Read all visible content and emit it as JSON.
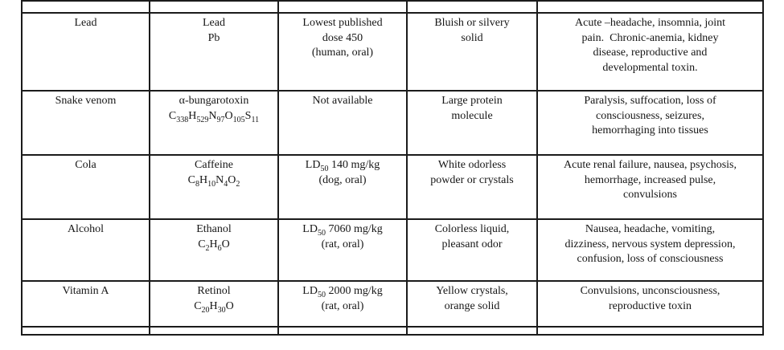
{
  "table": {
    "border_color": "#1b1b1b",
    "text_color": "#161616",
    "rows": [
      {
        "substance": [
          "Lead"
        ],
        "chemical": [
          "Lead",
          "Pb"
        ],
        "toxicity": [
          "Lowest published",
          "dose 450",
          "(human, oral)"
        ],
        "appearance": [
          "Bluish or silvery",
          "solid"
        ],
        "effects": [
          "Acute –headache, insomnia, joint",
          "pain.  Chronic-anemia, kidney",
          "disease, reproductive and",
          "developmental toxin."
        ]
      },
      {
        "substance": [
          "Snake venom"
        ],
        "chemical": [
          "α-bungarotoxin",
          "C_{338}H_{529}N_{97}O_{105}S_{11}"
        ],
        "toxicity": [
          "Not available"
        ],
        "appearance": [
          "Large protein",
          "molecule"
        ],
        "effects": [
          "Paralysis, suffocation, loss of",
          "consciousness, seizures,",
          "hemorrhaging into tissues"
        ]
      },
      {
        "substance": [
          "Cola"
        ],
        "chemical": [
          "Caffeine",
          "C_{8}H_{10}N_{4}O_{2}"
        ],
        "toxicity": [
          "LD_{50} 140 mg/kg",
          "(dog, oral)"
        ],
        "appearance": [
          "White odorless",
          "powder or crystals"
        ],
        "effects": [
          "Acute renal failure, nausea, psychosis,",
          "hemorrhage, increased pulse,",
          "convulsions"
        ]
      },
      {
        "substance": [
          "Alcohol"
        ],
        "chemical": [
          "Ethanol",
          "C_{2}H_{6}O"
        ],
        "toxicity": [
          "LD_{50} 7060 mg/kg",
          "(rat, oral)"
        ],
        "appearance": [
          "Colorless liquid,",
          "pleasant odor"
        ],
        "effects": [
          "Nausea, headache, vomiting,",
          "dizziness, nervous system depression,",
          "confusion, loss of consciousness"
        ]
      },
      {
        "substance": [
          "Vitamin A"
        ],
        "chemical": [
          "Retinol",
          "C_{20}H_{30}O"
        ],
        "toxicity": [
          "LD_{50} 2000 mg/kg",
          "(rat, oral)"
        ],
        "appearance": [
          "Yellow crystals,",
          "orange solid"
        ],
        "effects": [
          "Convulsions, unconsciousness,",
          "reproductive toxin"
        ]
      }
    ]
  }
}
